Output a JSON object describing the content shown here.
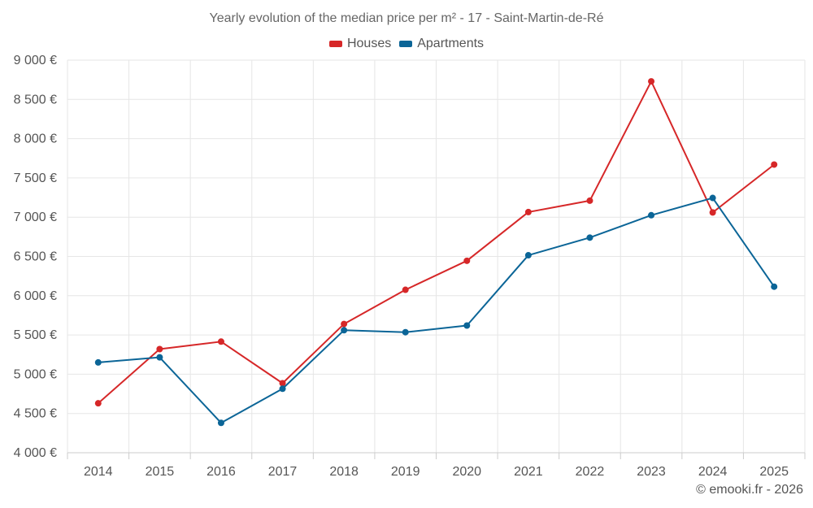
{
  "chart_data": {
    "type": "line",
    "title": "Yearly evolution of the median price per m² - 17 - Saint-Martin-de-Ré",
    "categories": [
      "2014",
      "2015",
      "2016",
      "2017",
      "2018",
      "2019",
      "2020",
      "2021",
      "2022",
      "2023",
      "2024",
      "2025"
    ],
    "series": [
      {
        "name": "Houses",
        "color": "#d62728",
        "values": [
          4630,
          5320,
          5415,
          4885,
          5640,
          6075,
          6445,
          7065,
          7210,
          8730,
          7060,
          7670
        ]
      },
      {
        "name": "Apartments",
        "color": "#0b6597",
        "values": [
          5150,
          5215,
          4380,
          4815,
          5560,
          5535,
          5620,
          6515,
          6740,
          7025,
          7245,
          6115
        ]
      }
    ],
    "ylim": [
      4000,
      9000
    ],
    "yticks": [
      4000,
      4500,
      5000,
      5500,
      6000,
      6500,
      7000,
      7500,
      8000,
      8500,
      9000
    ],
    "ytick_labels": [
      "4 000 €",
      "4 500 €",
      "5 000 €",
      "5 500 €",
      "6 000 €",
      "6 500 €",
      "7 000 €",
      "7 500 €",
      "8 000 €",
      "8 500 €",
      "9 000 €"
    ],
    "xlabel": "",
    "ylabel": "",
    "grid": true,
    "legend_position": "top-center"
  },
  "credit": "© emooki.fr - 2026"
}
